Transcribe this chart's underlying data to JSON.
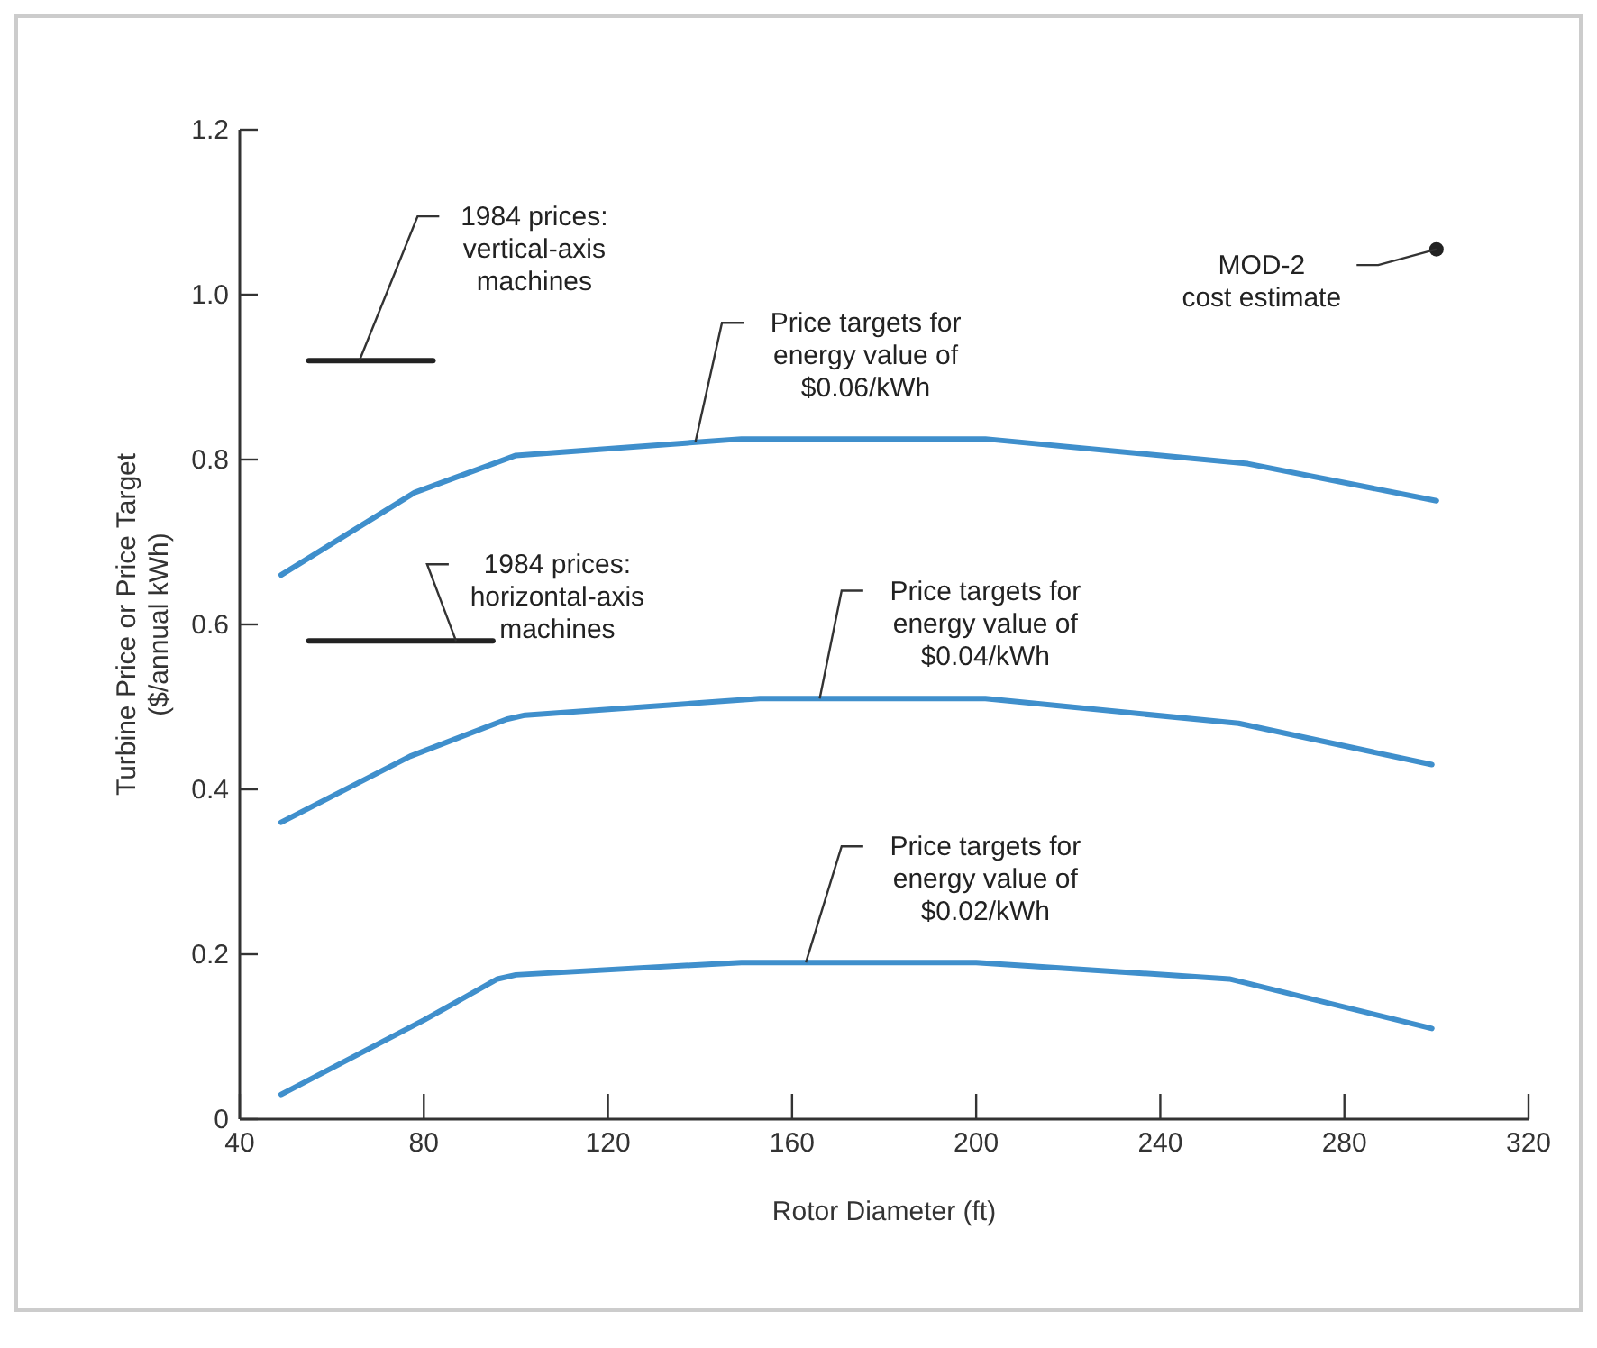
{
  "chart_data": {
    "type": "line",
    "xlabel": "Rotor Diameter (ft)",
    "ylabel": "Turbine Price or Price Target ($/annual kWh)",
    "xlim": [
      40,
      320
    ],
    "xticks": [
      40,
      80,
      120,
      160,
      200,
      240,
      280,
      320
    ],
    "ylim": [
      0,
      1.2
    ],
    "yticks": [
      0,
      0.2,
      0.4,
      0.6,
      {
        "value": 1,
        "label": "1.0"
      },
      0.8,
      1.2
    ],
    "grid": false,
    "line_style": "solid",
    "series": [
      {
        "name": "Price targets for energy value of $0.06/kWh",
        "color": "#3f8fcc",
        "x": [
          49,
          78,
          100,
          149,
          202,
          259,
          300
        ],
        "values": [
          0.66,
          0.76,
          0.805,
          0.825,
          0.825,
          0.795,
          0.75
        ]
      },
      {
        "name": "Price targets for energy value of $0.04/kWh",
        "color": "#3f8fcc",
        "x": [
          49,
          77,
          98,
          102,
          153,
          202,
          257,
          299
        ],
        "values": [
          0.36,
          0.44,
          0.485,
          0.49,
          0.51,
          0.51,
          0.48,
          0.43
        ]
      },
      {
        "name": "Price targets for energy value of $0.02/kWh",
        "color": "#3f8fcc",
        "x": [
          49,
          80,
          96,
          100,
          149,
          200,
          255,
          299
        ],
        "values": [
          0.03,
          0.12,
          0.17,
          0.175,
          0.19,
          0.19,
          0.17,
          0.11
        ]
      },
      {
        "name": "1984 prices: vertical-axis machines",
        "color": "#222222",
        "x": [
          55,
          82
        ],
        "values": [
          0.92,
          0.92
        ]
      },
      {
        "name": "1984 prices: horizontal-axis machines",
        "color": "#222222",
        "x": [
          55,
          95
        ],
        "values": [
          0.58,
          0.58
        ]
      },
      {
        "type": "scatter",
        "name": "MOD-2 cost estimate",
        "color": "#222222",
        "x": [
          300
        ],
        "values": [
          1.055
        ]
      }
    ]
  }
}
